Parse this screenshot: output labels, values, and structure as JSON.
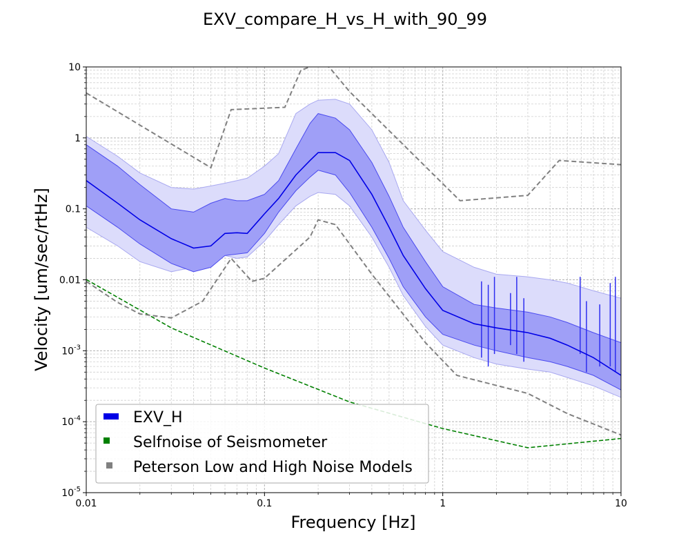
{
  "chart_data": {
    "type": "line",
    "title": "EXV_compare_H_vs_H_with_90_99",
    "xlabel": "Frequency [Hz]",
    "ylabel": "Velocity [um/sec/rtHz]",
    "xscale": "log",
    "yscale": "log",
    "xlim": [
      0.01,
      10
    ],
    "ylim": [
      1e-05,
      10
    ],
    "grid": true,
    "legend_position": "lower-left",
    "x_ticks": [
      {
        "value": 0.01,
        "label": "0.01"
      },
      {
        "value": 0.1,
        "label": "0.1"
      },
      {
        "value": 1,
        "label": "1"
      },
      {
        "value": 10,
        "label": "10"
      }
    ],
    "y_ticks": [
      {
        "value": 10,
        "base": "10",
        "exp": ""
      },
      {
        "value": 1,
        "base": "1",
        "exp": ""
      },
      {
        "value": 0.1,
        "base": "0.1",
        "exp": ""
      },
      {
        "value": 0.01,
        "base": "0.01",
        "exp": ""
      },
      {
        "value": 0.001,
        "base": "10",
        "exp": "-3"
      },
      {
        "value": 0.0001,
        "base": "10",
        "exp": "-4"
      },
      {
        "value": 1e-05,
        "base": "10",
        "exp": "-5"
      }
    ],
    "x": [
      0.01,
      0.015,
      0.02,
      0.03,
      0.04,
      0.05,
      0.06,
      0.07,
      0.08,
      0.1,
      0.12,
      0.15,
      0.18,
      0.2,
      0.25,
      0.3,
      0.4,
      0.5,
      0.6,
      0.8,
      1.0,
      1.5,
      2.0,
      3.0,
      4.0,
      5.0,
      7.0,
      10.0
    ],
    "band_outer": {
      "upper": [
        1.05,
        0.55,
        0.32,
        0.2,
        0.19,
        0.21,
        0.23,
        0.25,
        0.27,
        0.4,
        0.6,
        2.2,
        3.0,
        3.4,
        3.5,
        3.0,
        1.3,
        0.45,
        0.13,
        0.05,
        0.025,
        0.015,
        0.012,
        0.011,
        0.01,
        0.009,
        0.007,
        0.0055
      ],
      "lower": [
        0.055,
        0.03,
        0.018,
        0.013,
        0.015,
        0.02,
        0.022,
        0.02,
        0.021,
        0.035,
        0.06,
        0.11,
        0.15,
        0.17,
        0.16,
        0.11,
        0.04,
        0.015,
        0.006,
        0.0022,
        0.0012,
        0.0008,
        0.00065,
        0.00055,
        0.0005,
        0.00042,
        0.00032,
        0.00022
      ]
    },
    "band_inner": {
      "upper": [
        0.8,
        0.4,
        0.22,
        0.1,
        0.09,
        0.12,
        0.14,
        0.13,
        0.13,
        0.16,
        0.25,
        0.7,
        1.6,
        2.2,
        1.9,
        1.3,
        0.45,
        0.15,
        0.055,
        0.018,
        0.008,
        0.0045,
        0.004,
        0.0035,
        0.003,
        0.0025,
        0.0018,
        0.0013
      ],
      "lower": [
        0.11,
        0.055,
        0.032,
        0.017,
        0.013,
        0.015,
        0.022,
        0.023,
        0.024,
        0.045,
        0.09,
        0.18,
        0.28,
        0.35,
        0.3,
        0.17,
        0.055,
        0.02,
        0.008,
        0.003,
        0.0017,
        0.0012,
        0.001,
        0.0008,
        0.0007,
        0.0006,
        0.00045,
        0.00028
      ]
    },
    "series": [
      {
        "name": "EXV_H",
        "color": "#0000e6",
        "values": [
          0.25,
          0.12,
          0.07,
          0.038,
          0.028,
          0.03,
          0.045,
          0.046,
          0.045,
          0.085,
          0.14,
          0.3,
          0.48,
          0.62,
          0.62,
          0.48,
          0.16,
          0.055,
          0.022,
          0.0075,
          0.0037,
          0.0024,
          0.0021,
          0.0018,
          0.0015,
          0.0012,
          0.0008,
          0.00045
        ]
      },
      {
        "name": "Selfnoise of Seismometer",
        "color": "#008000",
        "x": [
          0.01,
          0.03,
          0.1,
          0.3,
          1.0,
          3.0,
          10.0
        ],
        "values": [
          0.0101,
          0.0021,
          0.00057,
          0.00019,
          8e-05,
          4.3e-05,
          5.8e-05
        ]
      },
      {
        "name": "Peterson Low and High Noise Models",
        "color": "#808080",
        "curves": [
          {
            "x": [
              0.01,
              0.05,
              0.065,
              0.13,
              0.16,
              0.2,
              0.23,
              0.3,
              1.25,
              3.0,
              4.5,
              10.0
            ],
            "values": [
              4.3,
              0.38,
              2.5,
              2.7,
              9.0,
              11.0,
              10.0,
              4.5,
              0.13,
              0.155,
              0.48,
              0.42
            ]
          },
          {
            "x": [
              0.01,
              0.015,
              0.02,
              0.03,
              0.045,
              0.065,
              0.085,
              0.1,
              0.18,
              0.2,
              0.25,
              0.4,
              0.8,
              1.2,
              3.0,
              5.0,
              10.0
            ],
            "values": [
              0.0095,
              0.0048,
              0.0033,
              0.0029,
              0.005,
              0.02,
              0.0095,
              0.0105,
              0.04,
              0.07,
              0.06,
              0.012,
              0.0013,
              0.00045,
              0.00025,
              0.00013,
              6.5e-05
            ]
          }
        ]
      }
    ],
    "spikes": [
      {
        "x": 1.65,
        "top": 0.0095,
        "bottom": 0.0008
      },
      {
        "x": 1.8,
        "top": 0.0085,
        "bottom": 0.0006
      },
      {
        "x": 1.95,
        "top": 0.011,
        "bottom": 0.0009
      },
      {
        "x": 2.4,
        "top": 0.0065,
        "bottom": 0.0012
      },
      {
        "x": 2.6,
        "top": 0.011,
        "bottom": 0.0009
      },
      {
        "x": 2.85,
        "top": 0.0055,
        "bottom": 0.0007
      },
      {
        "x": 5.9,
        "top": 0.011,
        "bottom": 0.0009
      },
      {
        "x": 6.4,
        "top": 0.005,
        "bottom": 0.0005
      },
      {
        "x": 7.6,
        "top": 0.0045,
        "bottom": 0.0006
      },
      {
        "x": 8.7,
        "top": 0.009,
        "bottom": 0.0006
      },
      {
        "x": 9.3,
        "top": 0.011,
        "bottom": 0.0005
      }
    ],
    "legend": [
      {
        "label": "EXV_H",
        "color": "#0000e6"
      },
      {
        "label": "Selfnoise of Seismometer",
        "color": "#008000"
      },
      {
        "label": "Peterson Low and High Noise Models",
        "color": "#808080"
      }
    ]
  }
}
